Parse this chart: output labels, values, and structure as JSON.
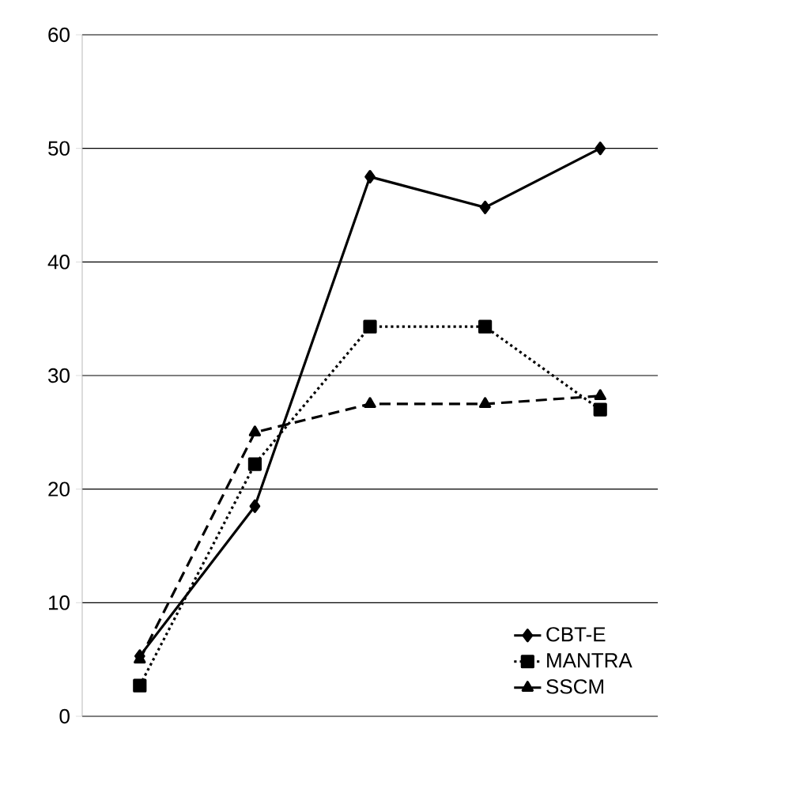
{
  "chart_data": {
    "type": "line",
    "categories": [
      null,
      null,
      null,
      null,
      null
    ],
    "series": [
      {
        "name": "CBT-E",
        "color": "#000000",
        "marker": "diamond",
        "line_style": "solid",
        "values": [
          5.3,
          18.5,
          47.5,
          44.8,
          50
        ]
      },
      {
        "name": "MANTRA",
        "color": "#000000",
        "marker": "square",
        "line_style": "dotted",
        "values": [
          2.7,
          22.2,
          34.3,
          34.3,
          27
        ]
      },
      {
        "name": "SSCM",
        "color": "#000000",
        "marker": "triangle",
        "line_style": "dashed",
        "values": [
          5,
          25,
          27.5,
          27.5,
          28.2
        ]
      }
    ],
    "ylim": [
      0,
      60
    ],
    "yticks": [
      0,
      10,
      20,
      30,
      40,
      50,
      60
    ],
    "grid": "y",
    "legend": "bottom right",
    "tick_labels": "y"
  }
}
